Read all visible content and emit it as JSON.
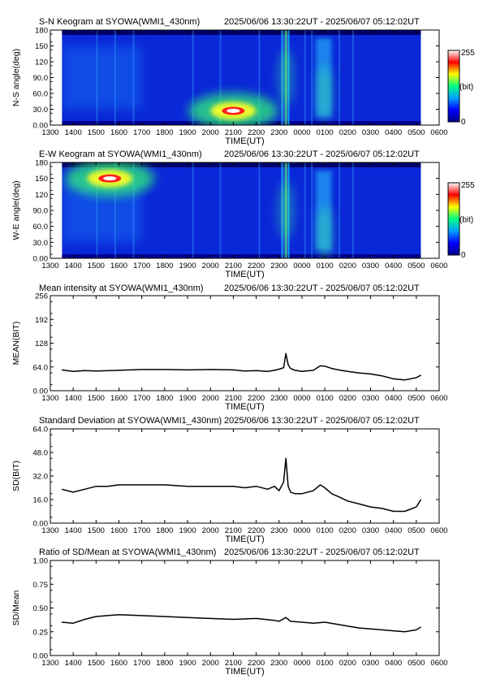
{
  "station": "SYOWA(WMI1_430nm)",
  "time_range": "2025/06/06 13:30:22UT - 2025/06/07 05:12:02UT",
  "x_axis": {
    "label": "TIME(UT)",
    "ticks": [
      "1300",
      "1400",
      "1500",
      "1600",
      "1700",
      "1800",
      "1900",
      "2000",
      "2100",
      "2200",
      "2300",
      "0000",
      "0100",
      "0200",
      "0300",
      "0400",
      "0500",
      "0600"
    ],
    "range_hours": [
      13,
      30
    ],
    "data_start_hour": 13.506,
    "data_end_hour": 29.201
  },
  "colorbar": {
    "max_label": "255",
    "unit_label": "(bit)",
    "min_label": "0",
    "colors": [
      "#000088",
      "#0000ff",
      "#00a0ff",
      "#00ff80",
      "#ffff00",
      "#ff0000",
      "#ffffff"
    ]
  },
  "chart_data": [
    {
      "type": "heatmap",
      "title": "S-N Keogram at SYOWA(WMI1_430nm)",
      "subtitle": "2025/06/06 13:30:22UT - 2025/06/07 05:12:02UT",
      "xlabel": "TIME(UT)",
      "ylabel": "N-S angle(deg)",
      "yticks": [
        "0.00",
        "30.0",
        "60.0",
        "90.0",
        "120",
        "150",
        "180"
      ],
      "ylim": [
        0,
        180
      ],
      "hotspots": [
        {
          "time_hour": 21.0,
          "angle_deg": 27,
          "intensity": 255
        },
        {
          "time_hour": 23.3,
          "angle_deg": 90,
          "intensity": 130
        },
        {
          "time_hour": 25.0,
          "angle_deg": 60,
          "intensity": 90
        }
      ]
    },
    {
      "type": "heatmap",
      "title": "E-W Keogram at SYOWA(WMI1_430nm)",
      "subtitle": "2025/06/06 13:30:22UT - 2025/06/07 05:12:02UT",
      "xlabel": "TIME(UT)",
      "ylabel": "W-E angle(deg)",
      "yticks": [
        "0.00",
        "30.0",
        "60.0",
        "90.0",
        "120",
        "150",
        "180"
      ],
      "ylim": [
        0,
        180
      ],
      "hotspots": [
        {
          "time_hour": 15.6,
          "angle_deg": 150,
          "intensity": 255
        },
        {
          "time_hour": 23.3,
          "angle_deg": 90,
          "intensity": 130
        },
        {
          "time_hour": 25.0,
          "angle_deg": 45,
          "intensity": 110
        }
      ]
    },
    {
      "type": "line",
      "title": "Mean intensity at SYOWA(WMI1_430nm)",
      "subtitle": "2025/06/06 13:30:22UT - 2025/06/07 05:12:02UT",
      "xlabel": "TIME(UT)",
      "ylabel": "MEAN(BIT)",
      "yticks": [
        "0.00",
        "64.0",
        "128",
        "192",
        "256"
      ],
      "ylim": [
        0,
        256
      ],
      "x": [
        13.5,
        14.0,
        14.5,
        15.0,
        16.0,
        17.0,
        18.0,
        19.0,
        20.0,
        21.0,
        21.5,
        22.0,
        22.5,
        22.8,
        23.0,
        23.2,
        23.3,
        23.4,
        23.5,
        23.7,
        24.0,
        24.5,
        24.8,
        25.0,
        25.3,
        25.6,
        26.0,
        26.5,
        27.0,
        27.5,
        28.0,
        28.5,
        29.0,
        29.2
      ],
      "y": [
        56,
        52,
        54,
        53,
        55,
        57,
        57,
        56,
        57,
        56,
        53,
        54,
        52,
        55,
        58,
        62,
        100,
        70,
        60,
        55,
        52,
        55,
        67,
        66,
        60,
        56,
        52,
        48,
        45,
        40,
        32,
        29,
        35,
        42
      ]
    },
    {
      "type": "line",
      "title": "Standard Deviation at SYOWA(WMI1_430nm)",
      "subtitle": "2025/06/06 13:30:22UT - 2025/06/07 05:12:02UT",
      "xlabel": "TIME(UT)",
      "ylabel": "SD(BIT)",
      "yticks": [
        "0.00",
        "16.0",
        "32.0",
        "48.0",
        "64.0"
      ],
      "ylim": [
        0,
        64
      ],
      "x": [
        13.5,
        14.0,
        14.5,
        15.0,
        15.5,
        16.0,
        17.0,
        18.0,
        19.0,
        20.0,
        21.0,
        21.5,
        22.0,
        22.5,
        22.8,
        23.0,
        23.2,
        23.3,
        23.4,
        23.5,
        23.7,
        24.0,
        24.5,
        24.8,
        25.0,
        25.3,
        25.6,
        26.0,
        26.5,
        27.0,
        27.5,
        28.0,
        28.5,
        29.0,
        29.2
      ],
      "y": [
        23,
        21,
        23,
        25,
        25,
        26,
        26,
        26,
        25,
        25,
        25,
        24,
        25,
        23,
        25,
        22,
        28,
        44,
        25,
        21,
        20,
        20,
        22,
        26,
        24,
        20,
        18,
        15,
        13,
        11,
        10,
        8,
        8,
        11,
        16
      ]
    },
    {
      "type": "line",
      "title": "Ratio of SD/Mean at SYOWA(WMI1_430nm)",
      "subtitle": "2025/06/06 13:30:22UT - 2025/06/07 05:12:02UT",
      "xlabel": "TIME(UT)",
      "ylabel": "SD/Mean",
      "yticks": [
        "0.00",
        "0.25",
        "0.50",
        "0.75",
        "1.00"
      ],
      "ylim": [
        0,
        1
      ],
      "x": [
        13.5,
        14.0,
        14.5,
        15.0,
        16.0,
        17.0,
        18.0,
        19.0,
        20.0,
        21.0,
        22.0,
        22.8,
        23.0,
        23.3,
        23.5,
        24.0,
        24.5,
        25.0,
        25.5,
        26.0,
        26.5,
        27.0,
        27.5,
        28.0,
        28.5,
        29.0,
        29.2
      ],
      "y": [
        0.35,
        0.34,
        0.38,
        0.41,
        0.43,
        0.42,
        0.41,
        0.4,
        0.39,
        0.38,
        0.39,
        0.37,
        0.36,
        0.4,
        0.36,
        0.35,
        0.34,
        0.35,
        0.33,
        0.31,
        0.29,
        0.28,
        0.27,
        0.26,
        0.25,
        0.27,
        0.3
      ]
    }
  ]
}
